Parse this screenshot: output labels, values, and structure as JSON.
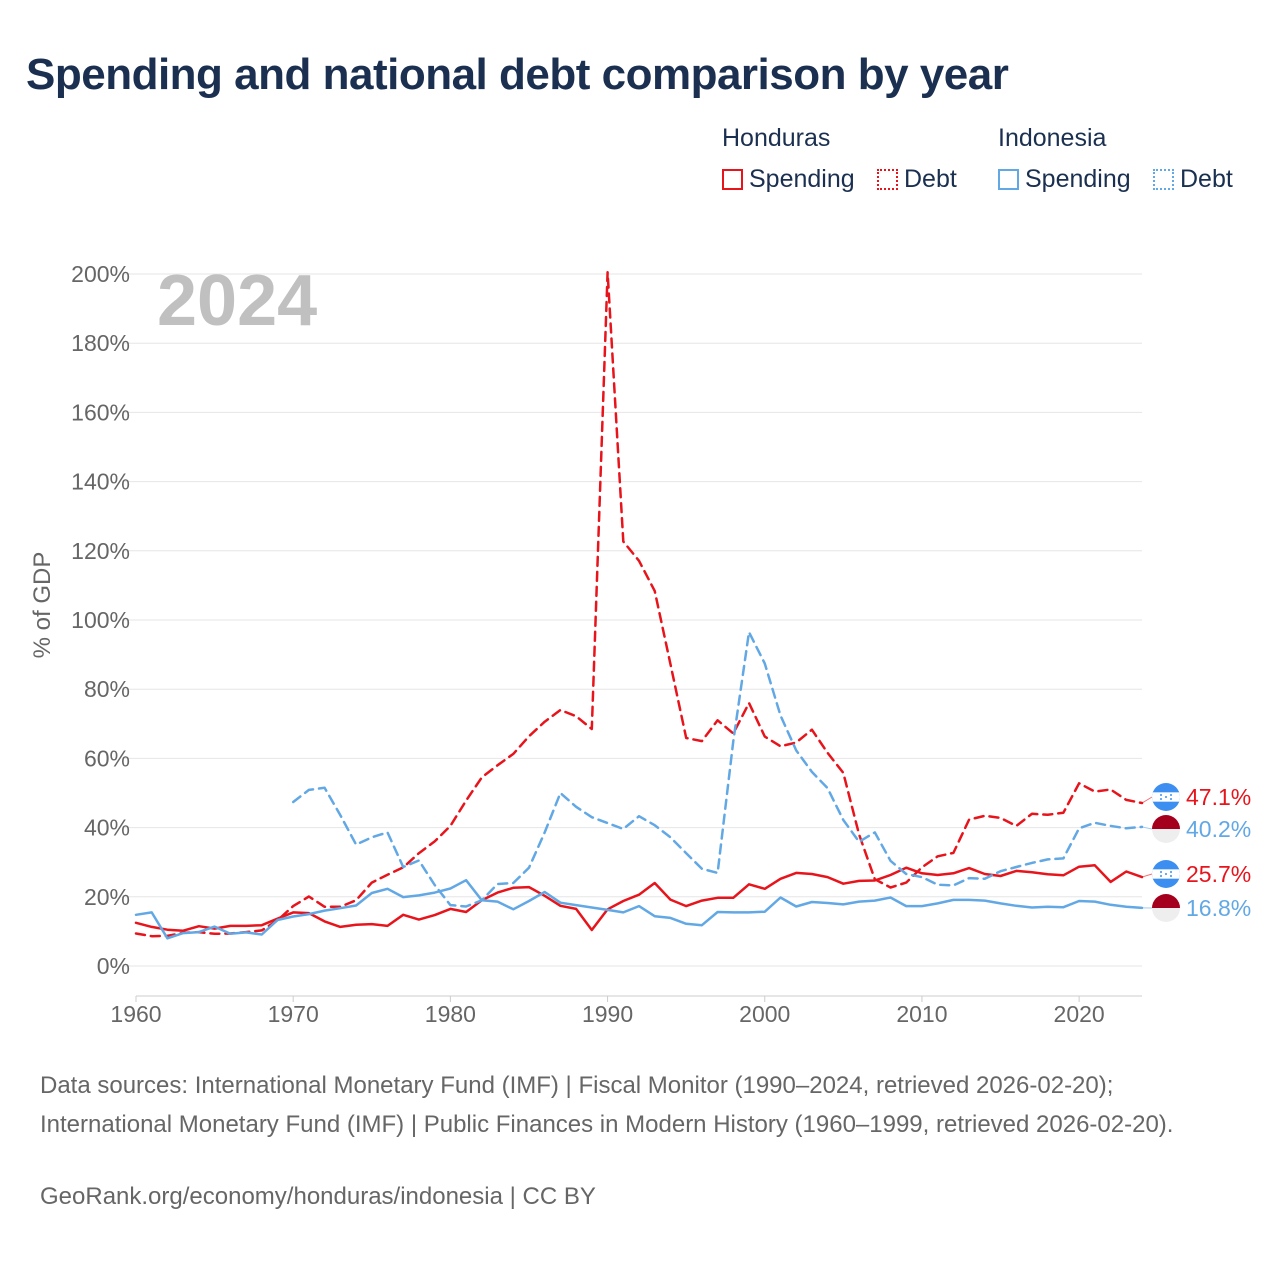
{
  "title": "Spending and national debt comparison by year",
  "year_label": "2024",
  "y_axis_title": "% of GDP",
  "legend": {
    "honduras_title": "Honduras",
    "indonesia_title": "Indonesia",
    "spending_label": "Spending",
    "debt_label": "Debt"
  },
  "colors": {
    "honduras": "#e8141c",
    "indonesia": "#62a8e5",
    "title": "#1b3050",
    "muted": "#666666",
    "year": "#c0c0c0",
    "flag_blue": "#3c8ff0",
    "flag_red": "#a4001d"
  },
  "end_labels": {
    "honduras_debt": "47.1%",
    "indonesia_debt": "40.2%",
    "honduras_spending": "25.7%",
    "indonesia_spending": "16.8%"
  },
  "sources": {
    "text": "Data sources: International Monetary Fund (IMF) | Fiscal Monitor (1990–2024, retrieved 2026-02-20); International Monetary Fund (IMF) | Public Finances in Modern History (1960–1999, retrieved 2026-02-20).",
    "credit": "GeoRank.org/economy/honduras/indonesia | CC BY"
  },
  "chart_data": {
    "type": "line",
    "title": "Spending and national debt comparison by year",
    "xlabel": "",
    "ylabel": "% of GDP",
    "x_ticks": [
      1960,
      1970,
      1980,
      1990,
      2000,
      2010,
      2020
    ],
    "x_tick_labels": [
      "1960",
      "1970",
      "1980",
      "1990",
      "2000",
      "2010",
      "2020"
    ],
    "y_ticks": [
      0,
      20,
      40,
      60,
      80,
      100,
      120,
      140,
      160,
      180,
      200
    ],
    "y_tick_labels": [
      "0%",
      "20%",
      "40%",
      "60%",
      "80%",
      "100%",
      "120%",
      "140%",
      "160%",
      "180%",
      "200%"
    ],
    "xlim": [
      1960,
      2024
    ],
    "ylim": [
      0,
      200
    ],
    "grid": true,
    "legend_position": "top-right",
    "series": [
      {
        "name": "Honduras Spending",
        "country": "honduras",
        "kind": "spending",
        "start": 1960,
        "values": [
          12.5,
          11.3,
          10.5,
          10.2,
          11.5,
          10.8,
          11.6,
          11.6,
          11.8,
          13.7,
          15.5,
          15.3,
          12.9,
          11.3,
          11.9,
          12.1,
          11.6,
          14.8,
          13.4,
          14.7,
          16.5,
          15.6,
          19,
          21.2,
          22.6,
          22.8,
          20.3,
          17.4,
          16.5,
          10.4,
          16.4,
          18.8,
          20.6,
          24,
          19.2,
          17.3,
          18.9,
          19.7,
          19.7,
          23.6,
          22.3,
          25.2,
          26.9,
          26.6,
          25.7,
          23.8,
          24.6,
          24.7,
          26.3,
          28.4,
          26.8,
          26.3,
          26.8,
          28.3,
          26.6,
          26,
          27.5,
          27.1,
          26.5,
          26.2,
          28.7,
          29.1,
          24.3,
          27.3,
          25.7
        ]
      },
      {
        "name": "Honduras Debt",
        "country": "honduras",
        "kind": "debt",
        "start": 1960,
        "values": [
          9.4,
          8.6,
          8.7,
          9.6,
          9.8,
          9.3,
          9.4,
          9.8,
          10.3,
          13.2,
          17.3,
          20.1,
          17.1,
          17.1,
          19,
          24.1,
          26.4,
          28.5,
          32.6,
          36,
          40.5,
          47.8,
          54.5,
          58,
          61.3,
          66.4,
          70.6,
          74,
          72.2,
          68.5,
          200.5,
          122.7,
          117.1,
          108.4,
          87.3,
          65.9,
          65,
          71,
          67.2,
          76,
          66.3,
          63.5,
          64.6,
          68.3,
          61.6,
          55.8,
          38,
          25.1,
          22.7,
          24.1,
          28.5,
          31.7,
          32.7,
          42.3,
          43.4,
          42.8,
          40.5,
          44,
          43.7,
          44.3,
          52.8,
          50.4,
          51,
          48,
          47.1
        ]
      },
      {
        "name": "Indonesia Spending",
        "country": "indonesia",
        "kind": "spending",
        "start": 1960,
        "values": [
          14.8,
          15.5,
          8,
          9.5,
          9.8,
          11.4,
          9.3,
          9.7,
          9.1,
          13.3,
          14.3,
          15,
          16,
          16.7,
          17.5,
          21.1,
          22.3,
          19.9,
          20.4,
          21.2,
          22.4,
          24.8,
          19,
          18.6,
          16.4,
          18.8,
          21.4,
          18.3,
          17.6,
          16.9,
          16.2,
          15.5,
          17.3,
          14.4,
          13.9,
          12.2,
          11.8,
          15.6,
          15.5,
          15.5,
          15.7,
          19.8,
          17.2,
          18.5,
          18.2,
          17.8,
          18.6,
          18.9,
          19.8,
          17.3,
          17.3,
          18.1,
          19.1,
          19.1,
          18.9,
          18.1,
          17.4,
          16.9,
          17.1,
          17,
          18.8,
          18.6,
          17.7,
          17.1,
          16.8
        ]
      },
      {
        "name": "Indonesia Debt",
        "country": "indonesia",
        "kind": "debt",
        "start": 1970,
        "values": [
          47.4,
          50.9,
          51.5,
          43.6,
          35.1,
          37.2,
          38.6,
          28.6,
          30.5,
          23.4,
          17.6,
          17.2,
          19,
          23.7,
          24,
          28.4,
          38.6,
          50,
          46,
          43,
          41.3,
          39.6,
          43.3,
          40.7,
          37.2,
          32.6,
          28.1,
          26.9,
          65,
          96.5,
          87.4,
          72.4,
          62.3,
          56.1,
          51.4,
          42.2,
          35.9,
          38.6,
          30.4,
          26.6,
          25.7,
          23.5,
          23.3,
          25.4,
          25.2,
          27.4,
          28.6,
          29.8,
          30.8,
          31.1,
          39.8,
          41.4,
          40.5,
          39.8,
          40.2
        ]
      }
    ]
  }
}
